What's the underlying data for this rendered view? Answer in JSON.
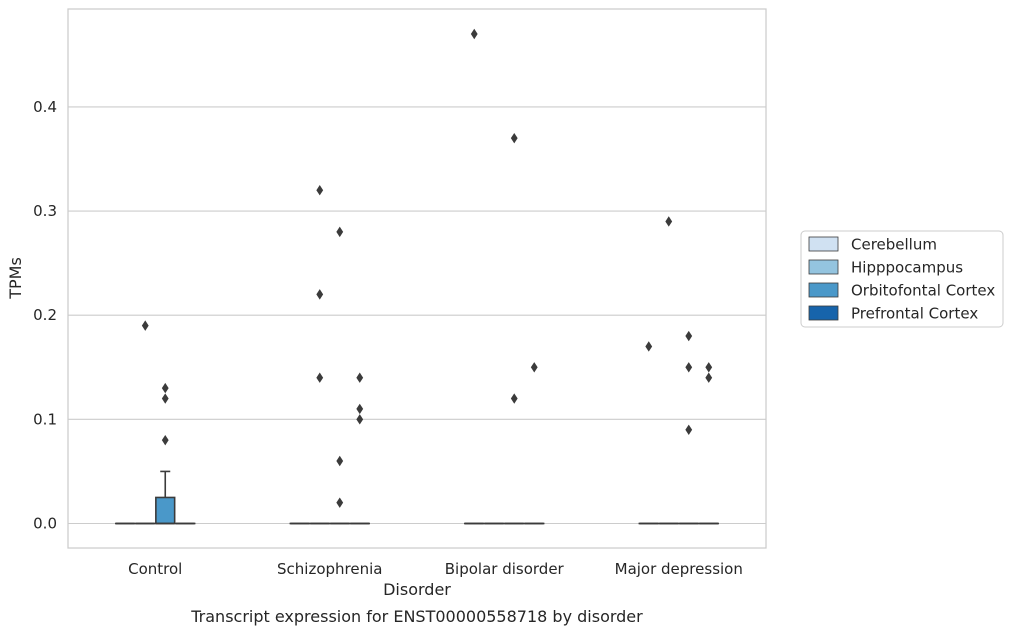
{
  "chart_data": {
    "type": "box",
    "caption": "Transcript expression for ENST00000558718 by disorder",
    "xlabel": "Disorder",
    "ylabel": "TPMs",
    "ylim": [
      -0.023,
      0.493
    ],
    "yticks": [
      0.0,
      0.1,
      0.2,
      0.3,
      0.4
    ],
    "ytick_labels": [
      "0.0",
      "0.1",
      "0.2",
      "0.3",
      "0.4"
    ],
    "grid": "horizontal",
    "legend_position": "right-center",
    "categories": [
      "Control",
      "Schizophrenia",
      "Bipolar disorder",
      "Major depression"
    ],
    "series": [
      {
        "name": "Cerebellum",
        "color": "#d0e1f2",
        "boxes": [
          {
            "q1": 0,
            "median": 0,
            "q3": 0,
            "whisker_low": 0,
            "whisker_high": 0,
            "outliers": []
          },
          {
            "q1": 0,
            "median": 0,
            "q3": 0,
            "whisker_low": 0,
            "whisker_high": 0,
            "outliers": []
          },
          {
            "q1": 0,
            "median": 0,
            "q3": 0,
            "whisker_low": 0,
            "whisker_high": 0,
            "outliers": [
              0.47
            ]
          },
          {
            "q1": 0,
            "median": 0,
            "q3": 0,
            "whisker_low": 0,
            "whisker_high": 0,
            "outliers": [
              0.17
            ]
          }
        ]
      },
      {
        "name": "Hipppocampus",
        "color": "#94c4df",
        "boxes": [
          {
            "q1": 0,
            "median": 0,
            "q3": 0,
            "whisker_low": 0,
            "whisker_high": 0,
            "outliers": [
              0.19
            ]
          },
          {
            "q1": 0,
            "median": 0,
            "q3": 0,
            "whisker_low": 0,
            "whisker_high": 0,
            "outliers": [
              0.32,
              0.22,
              0.14
            ]
          },
          {
            "q1": 0,
            "median": 0,
            "q3": 0,
            "whisker_low": 0,
            "whisker_high": 0,
            "outliers": []
          },
          {
            "q1": 0,
            "median": 0,
            "q3": 0,
            "whisker_low": 0,
            "whisker_high": 0,
            "outliers": [
              0.29
            ]
          }
        ]
      },
      {
        "name": "Orbitofontal Cortex",
        "color": "#4a98c9",
        "boxes": [
          {
            "q1": 0,
            "median": 0,
            "q3": 0.025,
            "whisker_low": 0,
            "whisker_high": 0.05,
            "outliers": [
              0.13,
              0.12,
              0.08
            ]
          },
          {
            "q1": 0,
            "median": 0,
            "q3": 0,
            "whisker_low": 0,
            "whisker_high": 0,
            "outliers": [
              0.28,
              0.06,
              0.02
            ]
          },
          {
            "q1": 0,
            "median": 0,
            "q3": 0,
            "whisker_low": 0,
            "whisker_high": 0,
            "outliers": [
              0.37,
              0.12
            ]
          },
          {
            "q1": 0,
            "median": 0,
            "q3": 0,
            "whisker_low": 0,
            "whisker_high": 0,
            "outliers": [
              0.18,
              0.15,
              0.09
            ]
          }
        ]
      },
      {
        "name": "Prefrontal Cortex",
        "color": "#1764ab",
        "boxes": [
          {
            "q1": 0,
            "median": 0,
            "q3": 0,
            "whisker_low": 0,
            "whisker_high": 0,
            "outliers": []
          },
          {
            "q1": 0,
            "median": 0,
            "q3": 0,
            "whisker_low": 0,
            "whisker_high": 0,
            "outliers": [
              0.14,
              0.11,
              0.1
            ]
          },
          {
            "q1": 0,
            "median": 0,
            "q3": 0,
            "whisker_low": 0,
            "whisker_high": 0,
            "outliers": [
              0.15
            ]
          },
          {
            "q1": 0,
            "median": 0,
            "q3": 0,
            "whisker_low": 0,
            "whisker_high": 0,
            "outliers": [
              0.15,
              0.14
            ]
          }
        ]
      }
    ]
  }
}
